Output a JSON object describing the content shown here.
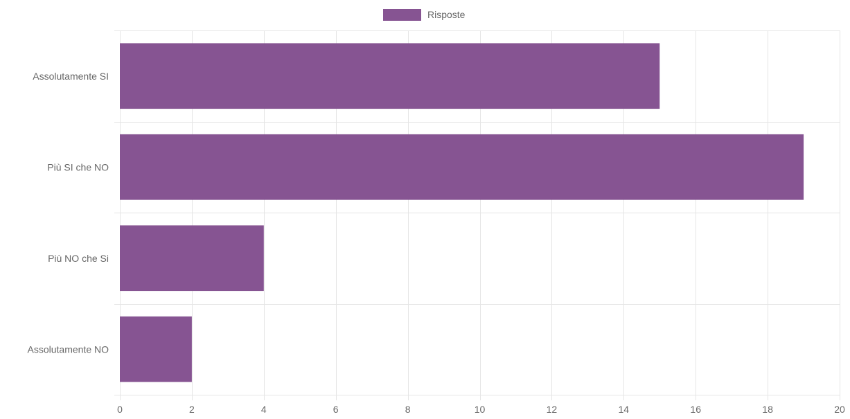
{
  "chart_data": {
    "type": "bar",
    "orientation": "horizontal",
    "categories": [
      "Assolutamente SI",
      "Più SI che NO",
      "Più NO che Si",
      "Assolutamente NO"
    ],
    "series": [
      {
        "name": "Risposte",
        "values": [
          15,
          19,
          4,
          2
        ]
      }
    ],
    "xlim": [
      0,
      20
    ],
    "x_ticks": [
      0,
      2,
      4,
      6,
      8,
      10,
      12,
      14,
      16,
      18,
      20
    ],
    "grid": true,
    "legend": {
      "position": "top-center",
      "entries": [
        "Risposte"
      ]
    },
    "colors": {
      "bar": "#865492",
      "grid": "#e5e5e5",
      "text": "#666666"
    }
  }
}
